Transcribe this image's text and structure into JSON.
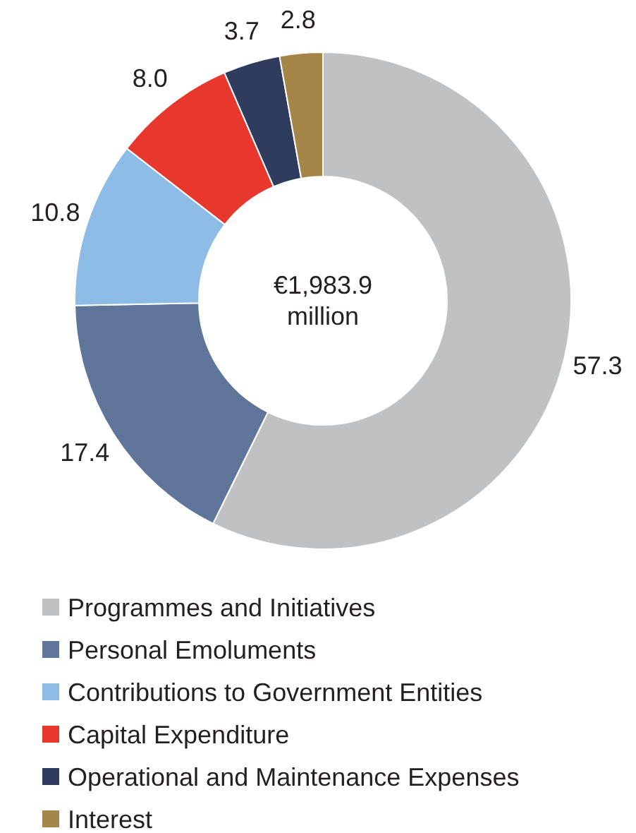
{
  "chart_data": {
    "type": "donut",
    "categories": [
      "Programmes and Initiatives",
      "Personal Emoluments",
      "Contributions to Government Entities",
      "Capital Expenditure",
      "Operational and Maintenance Expenses",
      "Interest"
    ],
    "values": [
      57.3,
      17.4,
      10.8,
      8.0,
      3.7,
      2.8
    ],
    "value_labels": [
      "57.3",
      "17.4",
      "10.8",
      "8.0",
      "3.7",
      "2.8"
    ],
    "colors": [
      "#bfc1c3",
      "#5f7599",
      "#8dbde6",
      "#e8372c",
      "#2f3c5e",
      "#a68648"
    ],
    "annotations": [
      "€1,983.9 million"
    ],
    "legend": "bottom"
  }
}
